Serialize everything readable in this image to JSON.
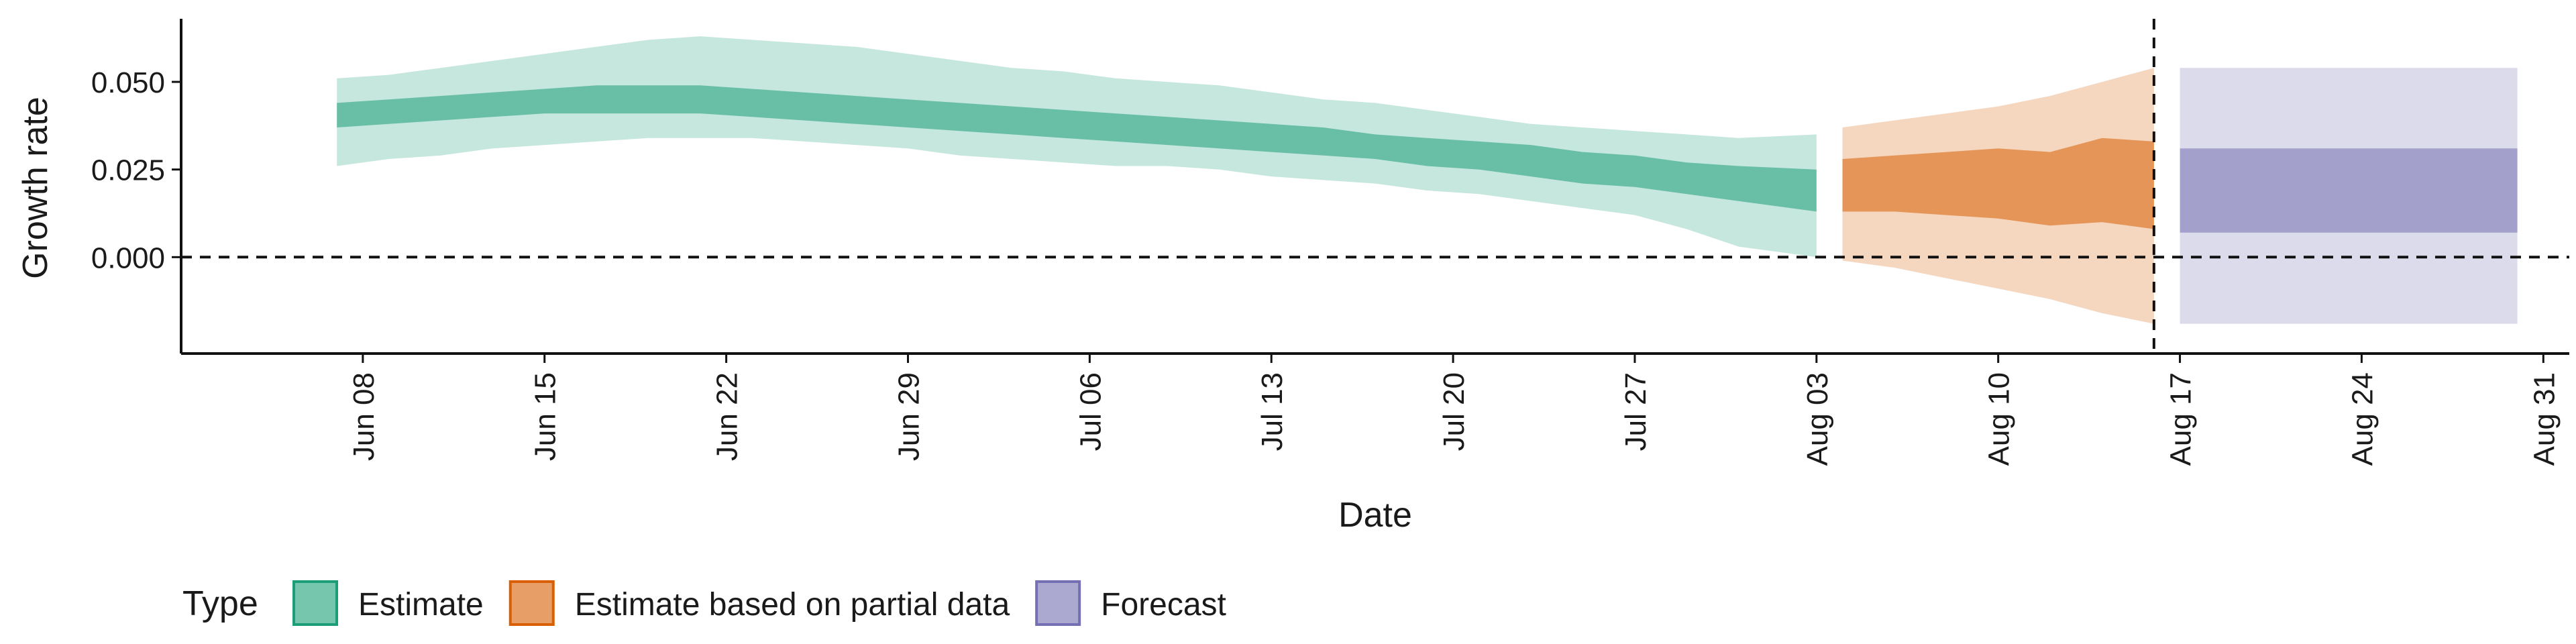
{
  "chart_data": {
    "type": "area",
    "xlabel": "Date",
    "ylabel": "Growth rate",
    "x_range": [
      "2020-06-01",
      "2020-09-01"
    ],
    "ylim": [
      -0.0275,
      0.068
    ],
    "y_ticks": [
      0.0,
      0.025,
      0.05
    ],
    "y_tick_labels": [
      "0.000",
      "0.025",
      "0.050"
    ],
    "x_ticks": [
      "2020-06-08",
      "2020-06-15",
      "2020-06-22",
      "2020-06-29",
      "2020-07-06",
      "2020-07-13",
      "2020-07-20",
      "2020-07-27",
      "2020-08-03",
      "2020-08-10",
      "2020-08-17",
      "2020-08-24",
      "2020-08-31"
    ],
    "x_tick_labels": [
      "Jun 08",
      "Jun 15",
      "Jun 22",
      "Jun 29",
      "Jul 06",
      "Jul 13",
      "Jul 20",
      "Jul 27",
      "Aug 03",
      "Aug 10",
      "Aug 17",
      "Aug 24",
      "Aug 31"
    ],
    "reference_hline": 0,
    "forecast_date_vline": "2020-08-16",
    "grid": false,
    "legend": {
      "title": "Type",
      "position": "bottom-left",
      "entries": [
        "Estimate",
        "Estimate based on partial data",
        "Forecast"
      ]
    },
    "series": [
      {
        "name": "Estimate",
        "color": "#1b9e77",
        "dates": [
          "2020-06-07",
          "2020-06-09",
          "2020-06-11",
          "2020-06-13",
          "2020-06-15",
          "2020-06-17",
          "2020-06-19",
          "2020-06-21",
          "2020-06-23",
          "2020-06-25",
          "2020-06-27",
          "2020-06-29",
          "2020-07-01",
          "2020-07-03",
          "2020-07-05",
          "2020-07-07",
          "2020-07-09",
          "2020-07-11",
          "2020-07-13",
          "2020-07-15",
          "2020-07-17",
          "2020-07-19",
          "2020-07-21",
          "2020-07-23",
          "2020-07-25",
          "2020-07-27",
          "2020-07-29",
          "2020-07-31",
          "2020-08-03"
        ],
        "lower_90": [
          0.026,
          0.028,
          0.029,
          0.031,
          0.032,
          0.033,
          0.034,
          0.034,
          0.034,
          0.033,
          0.032,
          0.031,
          0.029,
          0.028,
          0.027,
          0.026,
          0.026,
          0.025,
          0.023,
          0.022,
          0.021,
          0.019,
          0.018,
          0.016,
          0.014,
          0.012,
          0.008,
          0.003,
          0.0
        ],
        "lower_50": [
          0.037,
          0.038,
          0.039,
          0.04,
          0.041,
          0.041,
          0.041,
          0.041,
          0.04,
          0.039,
          0.038,
          0.037,
          0.036,
          0.035,
          0.034,
          0.033,
          0.032,
          0.031,
          0.03,
          0.029,
          0.028,
          0.026,
          0.025,
          0.023,
          0.021,
          0.02,
          0.018,
          0.016,
          0.013
        ],
        "upper_50": [
          0.044,
          0.045,
          0.046,
          0.047,
          0.048,
          0.049,
          0.049,
          0.049,
          0.048,
          0.047,
          0.046,
          0.045,
          0.044,
          0.043,
          0.042,
          0.041,
          0.04,
          0.039,
          0.038,
          0.037,
          0.035,
          0.034,
          0.033,
          0.032,
          0.03,
          0.029,
          0.027,
          0.026,
          0.025
        ],
        "upper_90": [
          0.051,
          0.052,
          0.054,
          0.056,
          0.058,
          0.06,
          0.062,
          0.063,
          0.062,
          0.061,
          0.06,
          0.058,
          0.056,
          0.054,
          0.053,
          0.051,
          0.05,
          0.049,
          0.047,
          0.045,
          0.044,
          0.042,
          0.04,
          0.038,
          0.037,
          0.036,
          0.035,
          0.034,
          0.035
        ]
      },
      {
        "name": "Estimate based on partial data",
        "color": "#d95f02",
        "dates": [
          "2020-08-04",
          "2020-08-06",
          "2020-08-08",
          "2020-08-10",
          "2020-08-12",
          "2020-08-14",
          "2020-08-16"
        ],
        "lower_90": [
          -0.001,
          -0.003,
          -0.006,
          -0.009,
          -0.012,
          -0.016,
          -0.019
        ],
        "lower_50": [
          0.013,
          0.013,
          0.012,
          0.011,
          0.009,
          0.01,
          0.008
        ],
        "upper_50": [
          0.028,
          0.029,
          0.03,
          0.031,
          0.03,
          0.034,
          0.033
        ],
        "upper_90": [
          0.037,
          0.039,
          0.041,
          0.043,
          0.046,
          0.05,
          0.054
        ]
      },
      {
        "name": "Forecast",
        "color": "#7570b3",
        "dates": [
          "2020-08-17",
          "2020-08-30"
        ],
        "lower_90": [
          -0.019,
          -0.019
        ],
        "lower_50": [
          0.007,
          0.007
        ],
        "upper_50": [
          0.031,
          0.031
        ],
        "upper_90": [
          0.054,
          0.054
        ]
      }
    ]
  }
}
